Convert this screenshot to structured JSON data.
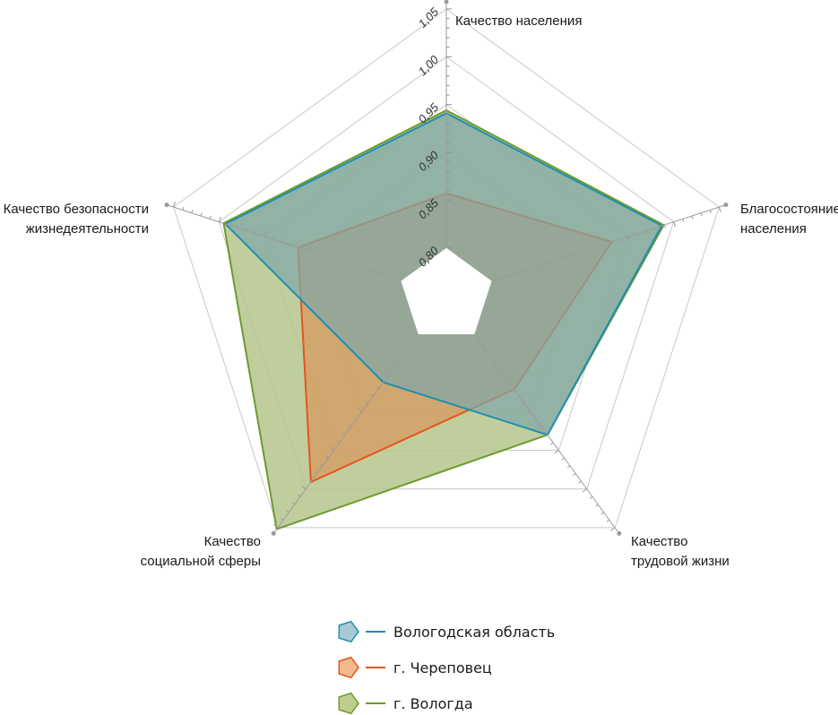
{
  "chart_data": {
    "type": "radar",
    "axes": [
      {
        "lines": [
          "Качество населения"
        ],
        "align": "start"
      },
      {
        "lines": [
          "Благосостояние",
          "населения"
        ],
        "align": "start"
      },
      {
        "lines": [
          "Качество",
          "трудовой жизни"
        ],
        "align": "start"
      },
      {
        "lines": [
          "Качество",
          "социальной сферы"
        ],
        "align": "end"
      },
      {
        "lines": [
          "Качество безопасности",
          "жизнедеятельности"
        ],
        "align": "end"
      }
    ],
    "scale": {
      "min": 0.75,
      "max": 1.05
    },
    "ticks": [
      "0,80",
      "0,85",
      "0,90",
      "0,95",
      "1,00",
      "1,05"
    ],
    "tick_values": [
      0.8,
      0.85,
      0.9,
      0.95,
      1.0,
      1.05
    ],
    "series": [
      {
        "name": "г. Вологда",
        "values": [
          0.944,
          0.989,
          0.93,
          1.052,
          0.995
        ],
        "stroke": "#6f9a2e",
        "fill": "#b5c68c",
        "fill_opacity": 0.85
      },
      {
        "name": "г. Череповец",
        "values": [
          0.857,
          0.932,
          0.871,
          0.991,
          0.913
        ],
        "stroke": "#e8541e",
        "fill": "#d79a62",
        "fill_opacity": 0.75
      },
      {
        "name": "Вологодская область",
        "values": [
          0.941,
          0.987,
          0.93,
          0.862,
          0.993
        ],
        "stroke": "#1e8fb0",
        "fill": "#7fa8a8",
        "fill_opacity": 0.72
      }
    ]
  },
  "legend": [
    {
      "label": "Вологодская область",
      "stroke": "#1e8fb0",
      "fill": "#a9c8d6"
    },
    {
      "label": "г. Череповец",
      "stroke": "#e8541e",
      "fill": "#f3b98f"
    },
    {
      "label": "г. Вологда",
      "stroke": "#6f9a2e",
      "fill": "#bfce8f"
    }
  ]
}
